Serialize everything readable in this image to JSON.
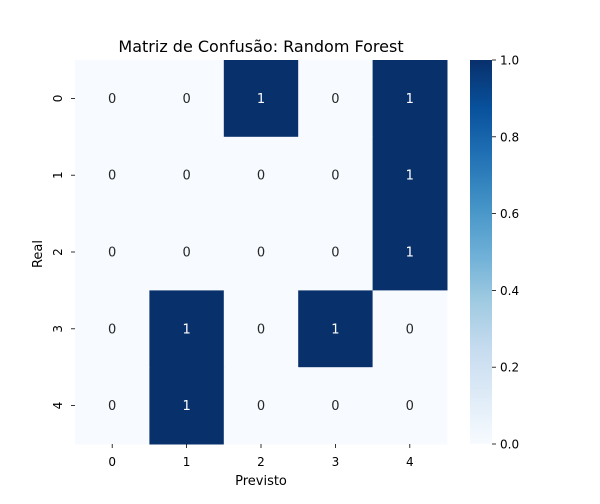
{
  "chart_data": {
    "type": "heatmap",
    "title": "Matriz de Confusão: Random Forest",
    "xlabel": "Previsto",
    "ylabel": "Real",
    "x_categories": [
      "0",
      "1",
      "2",
      "3",
      "4"
    ],
    "y_categories": [
      "0",
      "1",
      "2",
      "3",
      "4"
    ],
    "values": [
      [
        0,
        0,
        1,
        0,
        1
      ],
      [
        0,
        0,
        0,
        0,
        1
      ],
      [
        0,
        0,
        0,
        0,
        1
      ],
      [
        0,
        1,
        0,
        1,
        0
      ],
      [
        0,
        1,
        0,
        0,
        0
      ]
    ],
    "colorbar": {
      "min": 0.0,
      "max": 1.0,
      "ticks": [
        "0.0",
        "0.2",
        "0.4",
        "0.6",
        "0.8",
        "1.0"
      ]
    },
    "colormap": "Blues",
    "colors": {
      "low": "#f7fbff",
      "high": "#08306b"
    }
  }
}
